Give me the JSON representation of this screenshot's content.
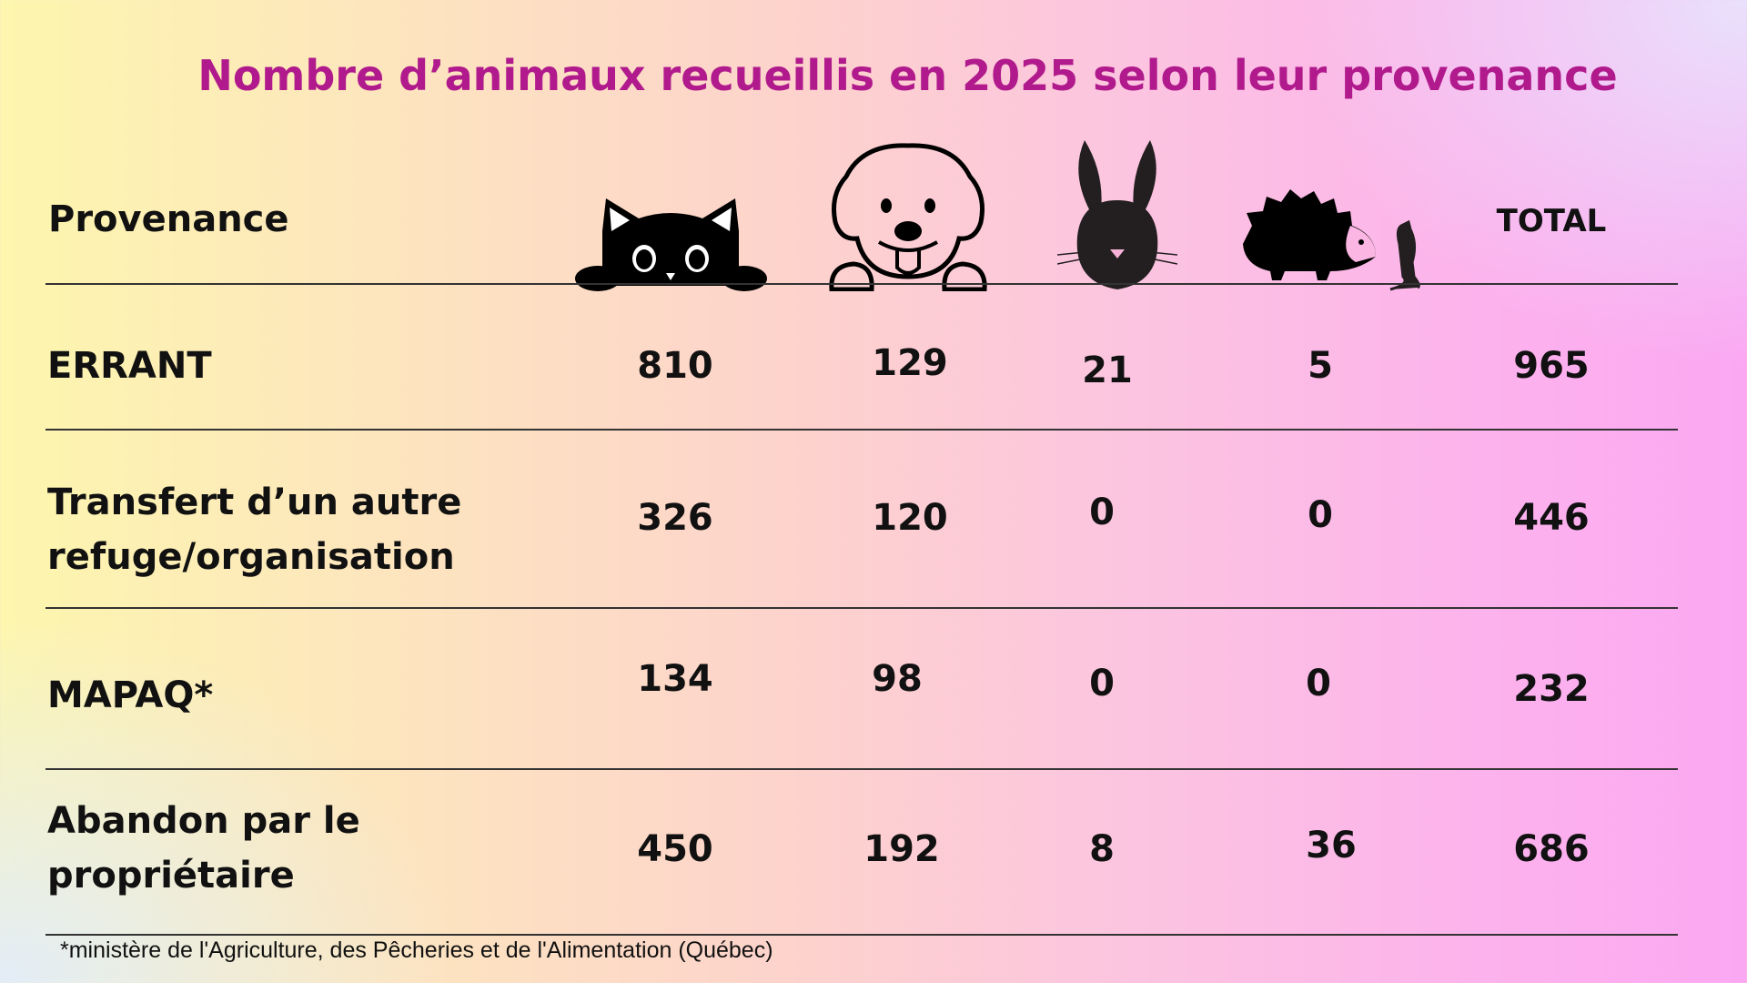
{
  "title": "Nombre d’animaux recueillis en 2025 selon leur provenance",
  "table": {
    "row_header": "Provenance",
    "columns": [
      {
        "icon": "cat-icon"
      },
      {
        "icon": "dog-icon"
      },
      {
        "icon": "rabbit-icon"
      },
      {
        "icon": "hedgehog-rat-icon"
      },
      {
        "label": "TOTAL"
      }
    ],
    "rows": [
      {
        "label": "ERRANT",
        "values": [
          "810",
          "129",
          "21",
          "5",
          "965"
        ]
      },
      {
        "label": "Transfert d’un autre refuge/organisation",
        "values": [
          "326",
          "120",
          "0",
          "0",
          "446"
        ]
      },
      {
        "label": "MAPAQ*",
        "values": [
          "134",
          "98",
          "0",
          "0",
          "232"
        ]
      },
      {
        "label": "Abandon par le propriétaire",
        "values": [
          "450",
          "192",
          "8",
          "36",
          "686"
        ]
      }
    ]
  },
  "footnote": "*ministère de l'Agriculture, des Pêcheries et de l'Alimentation (Québec)",
  "colors": {
    "title": "#b01a8c"
  }
}
